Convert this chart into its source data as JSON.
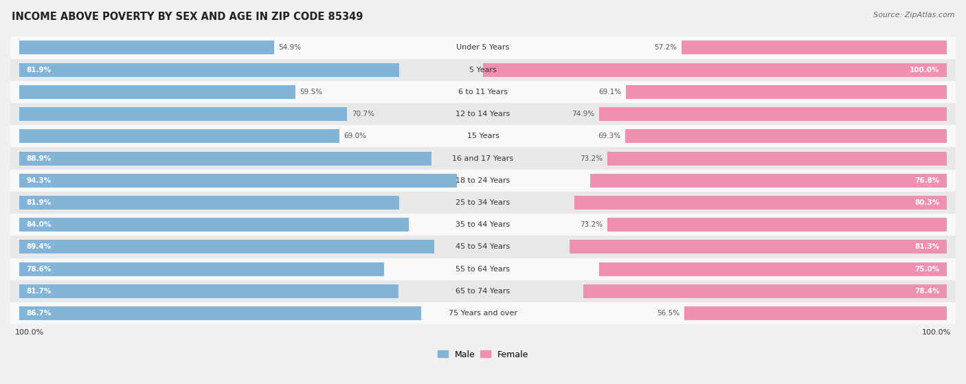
{
  "title": "INCOME ABOVE POVERTY BY SEX AND AGE IN ZIP CODE 85349",
  "source": "Source: ZipAtlas.com",
  "categories": [
    "Under 5 Years",
    "5 Years",
    "6 to 11 Years",
    "12 to 14 Years",
    "15 Years",
    "16 and 17 Years",
    "18 to 24 Years",
    "25 to 34 Years",
    "35 to 44 Years",
    "45 to 54 Years",
    "55 to 64 Years",
    "65 to 74 Years",
    "75 Years and over"
  ],
  "male_values": [
    54.9,
    81.9,
    59.5,
    70.7,
    69.0,
    88.9,
    94.3,
    81.9,
    84.0,
    89.4,
    78.6,
    81.7,
    86.7
  ],
  "female_values": [
    57.2,
    100.0,
    69.1,
    74.9,
    69.3,
    73.2,
    76.8,
    80.3,
    73.2,
    81.3,
    75.0,
    78.4,
    56.5
  ],
  "male_color": "#82b4d8",
  "female_color": "#f090b0",
  "male_label": "Male",
  "female_label": "Female",
  "bg_color": "#f0f0f0",
  "row_color_odd": "#e8e8e8",
  "row_color_even": "#f8f8f8",
  "title_fontsize": 10.5,
  "source_fontsize": 8,
  "label_fontsize": 8,
  "value_fontsize": 7.5,
  "max_val": 100.0
}
